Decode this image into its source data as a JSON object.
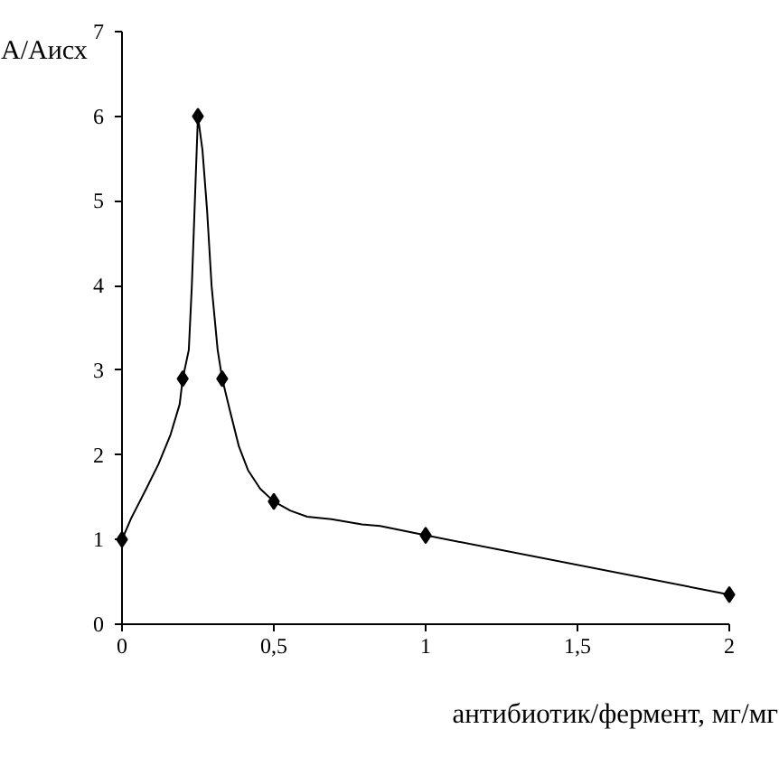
{
  "chart_data": {
    "type": "line",
    "xlabel": "антибиотик/фермент, мг/мг",
    "ylabel": "A/Aисх",
    "series": [
      {
        "color": "#000000",
        "x": [
          0,
          0.03,
          0.08,
          0.12,
          0.16,
          0.19,
          0.2,
          0.22,
          0.23,
          0.24,
          0.25,
          0.265,
          0.28,
          0.295,
          0.315,
          0.33,
          0.355,
          0.385,
          0.415,
          0.455,
          0.5,
          0.555,
          0.61,
          0.69,
          0.79,
          0.85,
          1,
          2
        ],
        "values": [
          1.0,
          1.25,
          1.6,
          1.89,
          2.24,
          2.6,
          2.9,
          3.24,
          4.0,
          5.0,
          6.0,
          5.6,
          4.9,
          4.0,
          3.24,
          2.9,
          2.53,
          2.1,
          1.82,
          1.6,
          1.45,
          1.34,
          1.27,
          1.24,
          1.18,
          1.16,
          1.05,
          0.35
        ]
      },
      {
        "type": "scatter",
        "color": "#000000",
        "marker": "diamond",
        "x": [
          0,
          0.2,
          0.25,
          0.33,
          0.5,
          1,
          2
        ],
        "values": [
          1.0,
          2.9,
          6.0,
          2.9,
          1.45,
          1.05,
          0.35
        ]
      }
    ],
    "xlim": [
      0,
      2
    ],
    "ylim": [
      0,
      7
    ],
    "xticks": [
      0,
      {
        "value": 0.5,
        "label": "0,5"
      },
      1,
      {
        "value": 1.5,
        "label": "1,5"
      },
      2
    ],
    "yticks": [
      0,
      1,
      2,
      3,
      4,
      5,
      6,
      7
    ],
    "grid": false,
    "line_style": "solid"
  }
}
